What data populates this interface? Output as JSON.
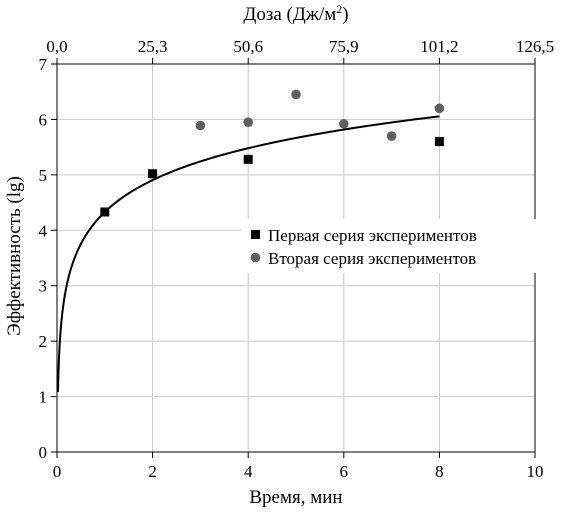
{
  "chart_data": {
    "type": "scatter",
    "xlabel": "Время, мин",
    "ylabel": "Эффективность (lg)",
    "top_axis_label": "Доза (Дж/м",
    "top_axis_label_sup": "2",
    "top_axis_label_end": ")",
    "xlim": [
      0,
      10
    ],
    "ylim": [
      0,
      7
    ],
    "x_ticks": [
      0,
      2,
      4,
      6,
      8,
      10
    ],
    "y_ticks": [
      0,
      1,
      2,
      3,
      4,
      5,
      6,
      7
    ],
    "top_ticks": [
      "0,0",
      "25,3",
      "50,6",
      "75,9",
      "101,2",
      "126,5"
    ],
    "grid": true,
    "legend_position": "center-right",
    "series": [
      {
        "name": "Первая серия экспериментов",
        "marker": "square",
        "color": "#000000",
        "points": [
          {
            "x": 1,
            "y": 4.33
          },
          {
            "x": 2,
            "y": 5.02
          },
          {
            "x": 4,
            "y": 5.28
          },
          {
            "x": 8,
            "y": 5.6
          }
        ]
      },
      {
        "name": "Вторая серия экспериментов",
        "marker": "circle",
        "color": "#606060",
        "points": [
          {
            "x": 3,
            "y": 5.89
          },
          {
            "x": 4,
            "y": 5.95
          },
          {
            "x": 5,
            "y": 6.45
          },
          {
            "x": 6,
            "y": 5.92
          },
          {
            "x": 7,
            "y": 5.7
          },
          {
            "x": 8,
            "y": 6.2
          }
        ]
      }
    ],
    "trendline": {
      "type": "logarithmic",
      "color": "#000000",
      "x_range": [
        0.02,
        8
      ],
      "a": 4.33,
      "b": 0.83
    }
  }
}
